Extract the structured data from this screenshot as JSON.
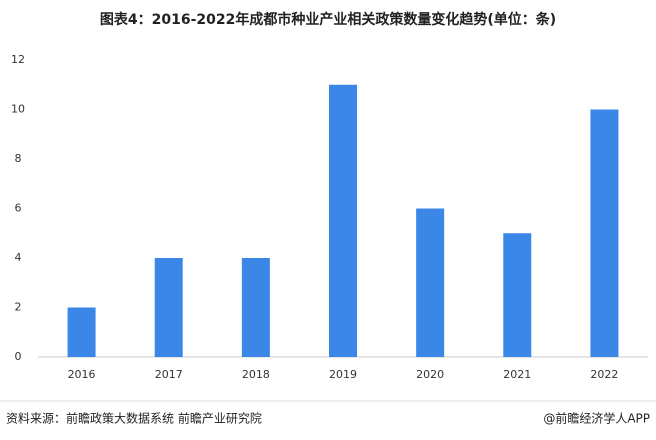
{
  "chart_data": {
    "type": "bar",
    "title": "图表4：2016-2022年成都市种业产业相关政策数量变化趋势(单位：条)",
    "categories": [
      "2016",
      "2017",
      "2018",
      "2019",
      "2020",
      "2021",
      "2022"
    ],
    "values": [
      2,
      4,
      4,
      11,
      6,
      5,
      10
    ],
    "color": "#3b87e8",
    "ylim": [
      0,
      12
    ],
    "yticks": [
      0,
      2,
      4,
      6,
      8,
      10,
      12
    ],
    "grid": false,
    "source": "资料来源：前瞻政策大数据系统 前瞻产业研究院",
    "credit": "@前瞻经济学人APP"
  }
}
